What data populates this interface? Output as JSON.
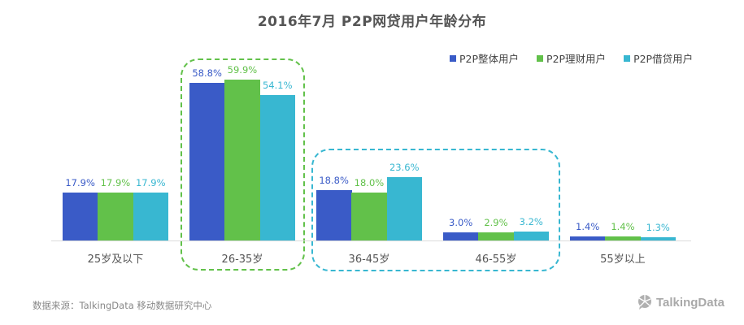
{
  "title": "2016年7月  P2P网贷用户年龄分布",
  "legend": [
    {
      "label": "P2P整体用户",
      "color": "#3a5bc7"
    },
    {
      "label": "P2P理财用户",
      "color": "#62c14a"
    },
    {
      "label": "P2P借贷用户",
      "color": "#38b7d1"
    }
  ],
  "chart_data": {
    "type": "bar",
    "title": "2016年7月  P2P网贷用户年龄分布",
    "xlabel": "",
    "ylabel": "",
    "categories": [
      "25岁及以下",
      "26-35岁",
      "36-45岁",
      "46-55岁",
      "55岁以上"
    ],
    "series": [
      {
        "name": "P2P整体用户",
        "color": "#3a5bc7",
        "values": [
          17.9,
          58.8,
          18.8,
          3.0,
          1.4
        ],
        "labels": [
          "17.9%",
          "58.8%",
          "18.8%",
          "3.0%",
          "1.4%"
        ]
      },
      {
        "name": "P2P理财用户",
        "color": "#62c14a",
        "values": [
          17.9,
          59.9,
          18.0,
          2.9,
          1.4
        ],
        "labels": [
          "17.9%",
          "59.9%",
          "18.0%",
          "2.9%",
          "1.4%"
        ]
      },
      {
        "name": "P2P借贷用户",
        "color": "#38b7d1",
        "values": [
          17.9,
          54.1,
          23.6,
          3.2,
          1.3
        ],
        "labels": [
          "17.9%",
          "54.1%",
          "23.6%",
          "3.2%",
          "1.3%"
        ]
      }
    ],
    "legend_position": "top-right",
    "grid": false,
    "annotations": [
      {
        "type": "dashed-box",
        "color": "#62c14a",
        "covers": [
          "26-35岁"
        ]
      },
      {
        "type": "dashed-box",
        "color": "#38b7d1",
        "covers": [
          "36-45岁",
          "46-55岁"
        ]
      }
    ]
  },
  "footer": {
    "source": "数据来源：TalkingData 移动数据研究中心",
    "logo": "TalkingData"
  }
}
